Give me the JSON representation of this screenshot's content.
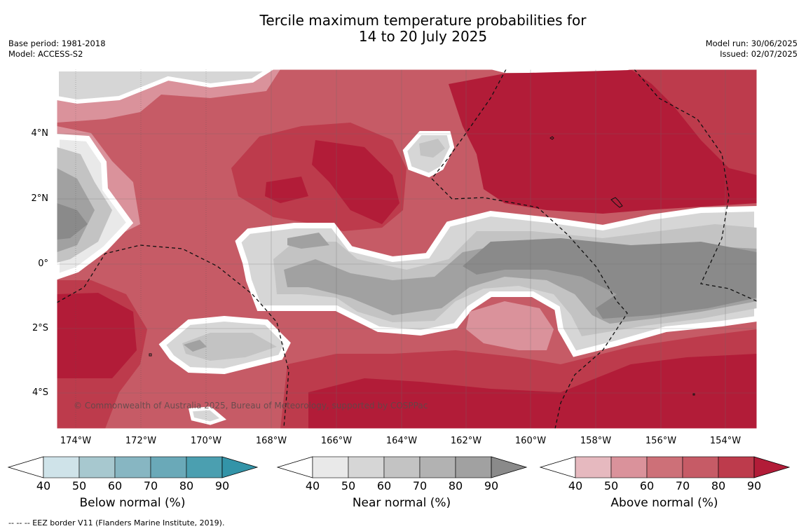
{
  "title_line1": "Tercile maximum temperature probabilities for",
  "title_line2": "14 to 20 July 2025",
  "meta_left": {
    "base_period": "Base period: 1981-2018",
    "model": "Model: ACCESS-S2"
  },
  "meta_right": {
    "model_run": "Model run: 30/06/2025",
    "issued": "Issued: 02/07/2025"
  },
  "lat_labels": [
    "4°N",
    "2°N",
    "0°",
    "2°S",
    "4°S"
  ],
  "lon_labels": [
    "174°W",
    "172°W",
    "170°W",
    "168°W",
    "166°W",
    "164°W",
    "162°W",
    "160°W",
    "158°W",
    "156°W",
    "154°W"
  ],
  "copyright": "© Commonwealth of Australia 2025, Bureau of Meteorology, supported by COSPPac",
  "colorbars": [
    {
      "title": "Below normal (%)",
      "ticks": [
        "40",
        "50",
        "60",
        "70",
        "80",
        "90"
      ],
      "colors": [
        "#cfe3e9",
        "#a7c8cf",
        "#87b6c2",
        "#6aa9b8",
        "#4b9fb0",
        "#3394a8"
      ]
    },
    {
      "title": "Near normal (%)",
      "ticks": [
        "40",
        "50",
        "60",
        "70",
        "80",
        "90"
      ],
      "colors": [
        "#e9e9e9",
        "#d6d6d6",
        "#c3c3c3",
        "#b2b2b2",
        "#a1a1a1",
        "#8a8a8a"
      ]
    },
    {
      "title": "Above normal (%)",
      "ticks": [
        "40",
        "50",
        "60",
        "70",
        "80",
        "90"
      ],
      "colors": [
        "#e6b9bf",
        "#da929b",
        "#cd7078",
        "#c65b66",
        "#bd3b4c",
        "#b21c38"
      ]
    }
  ],
  "footnote": "--  --  -- EEZ border V11 (Flanders Marine Institute, 2019)."
}
